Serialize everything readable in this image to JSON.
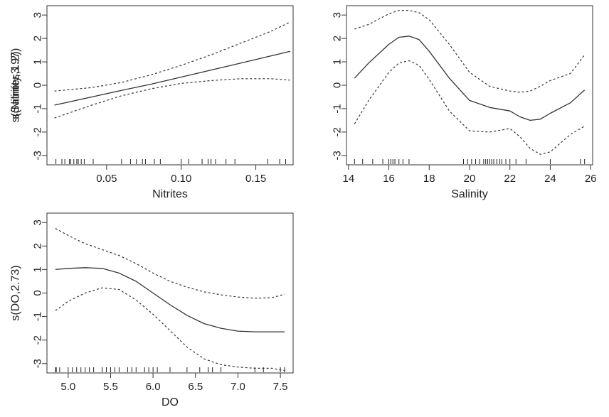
{
  "chart_data": [
    {
      "type": "line",
      "xlabel": "Nitrites",
      "ylabel": "s(Nitrites,1.2)",
      "xlim": [
        0.01,
        0.175
      ],
      "ylim": [
        -3.4,
        3.4
      ],
      "xticks": [
        0.05,
        0.1,
        0.15
      ],
      "xtick_labels": [
        "0.05",
        "0.10",
        "0.15"
      ],
      "yticks": [
        -3,
        -2,
        -1,
        0,
        1,
        2,
        3
      ],
      "ytick_labels": [
        "-3",
        "-2",
        "-1",
        "0",
        "1",
        "2",
        "3"
      ],
      "grid": false,
      "series": [
        {
          "role": "fit",
          "style": "solid",
          "x": [
            0.015,
            0.04,
            0.06,
            0.08,
            0.1,
            0.12,
            0.14,
            0.16,
            0.173
          ],
          "y": [
            -0.85,
            -0.5,
            -0.22,
            0.05,
            0.35,
            0.65,
            0.95,
            1.25,
            1.45
          ]
        },
        {
          "role": "upper",
          "style": "dashed",
          "x": [
            0.015,
            0.04,
            0.06,
            0.08,
            0.1,
            0.12,
            0.14,
            0.16,
            0.173
          ],
          "y": [
            -0.25,
            -0.1,
            0.12,
            0.45,
            0.85,
            1.3,
            1.8,
            2.3,
            2.7
          ]
        },
        {
          "role": "lower",
          "style": "dashed",
          "x": [
            0.015,
            0.04,
            0.06,
            0.08,
            0.1,
            0.12,
            0.14,
            0.16,
            0.173
          ],
          "y": [
            -1.4,
            -0.85,
            -0.45,
            -0.15,
            0.08,
            0.2,
            0.28,
            0.28,
            0.22
          ]
        }
      ],
      "rug": [
        0.016,
        0.02,
        0.022,
        0.025,
        0.026,
        0.028,
        0.03,
        0.031,
        0.033,
        0.035,
        0.041,
        0.06,
        0.066,
        0.07,
        0.074,
        0.076,
        0.082,
        0.086,
        0.1,
        0.105,
        0.114,
        0.118,
        0.12,
        0.123,
        0.13,
        0.136,
        0.158,
        0.166,
        0.17
      ]
    },
    {
      "type": "line",
      "xlabel": "Salinity",
      "ylabel": "s(Salinity,3.97)",
      "xlim": [
        13.9,
        26.1
      ],
      "ylim": [
        -3.4,
        3.4
      ],
      "xticks": [
        14,
        16,
        18,
        20,
        22,
        24,
        26
      ],
      "xtick_labels": [
        "14",
        "16",
        "18",
        "20",
        "22",
        "24",
        "26"
      ],
      "yticks": [
        -3,
        -2,
        -1,
        0,
        1,
        2,
        3
      ],
      "ytick_labels": [
        "-3",
        "-2",
        "-1",
        "0",
        "1",
        "2",
        "3"
      ],
      "grid": false,
      "series": [
        {
          "role": "fit",
          "style": "solid",
          "x": [
            14.3,
            15.0,
            16.0,
            16.5,
            17.0,
            17.5,
            18.0,
            19.0,
            20.0,
            21.0,
            22.0,
            22.5,
            23.0,
            23.5,
            24.0,
            25.0,
            25.7
          ],
          "y": [
            0.3,
            0.95,
            1.75,
            2.05,
            2.1,
            1.95,
            1.45,
            0.3,
            -0.65,
            -0.95,
            -1.1,
            -1.35,
            -1.5,
            -1.45,
            -1.2,
            -0.75,
            -0.2
          ]
        },
        {
          "role": "upper",
          "style": "dashed",
          "x": [
            14.3,
            15.0,
            16.0,
            16.5,
            17.0,
            17.5,
            18.0,
            19.0,
            20.0,
            21.0,
            22.0,
            22.5,
            23.0,
            23.5,
            24.0,
            25.0,
            25.7
          ],
          "y": [
            2.4,
            2.6,
            3.05,
            3.2,
            3.2,
            3.1,
            2.8,
            1.75,
            0.55,
            -0.05,
            -0.25,
            -0.3,
            -0.25,
            -0.05,
            0.2,
            0.5,
            1.3
          ]
        },
        {
          "role": "lower",
          "style": "dashed",
          "x": [
            14.3,
            15.0,
            16.0,
            16.5,
            17.0,
            17.5,
            18.0,
            19.0,
            20.0,
            21.0,
            22.0,
            22.5,
            23.0,
            23.5,
            24.0,
            25.0,
            25.7
          ],
          "y": [
            -1.65,
            -0.65,
            0.55,
            0.95,
            1.05,
            0.85,
            0.25,
            -1.1,
            -1.95,
            -2.0,
            -1.85,
            -2.2,
            -2.7,
            -2.95,
            -2.85,
            -2.1,
            -1.75
          ]
        }
      ],
      "rug": [
        14.3,
        14.7,
        15.2,
        15.7,
        16.0,
        16.1,
        16.2,
        16.3,
        16.5,
        16.7,
        17.0,
        19.7,
        19.9,
        20.1,
        20.3,
        20.5,
        20.7,
        20.8,
        20.9,
        21.0,
        21.1,
        21.2,
        21.35,
        21.5,
        21.6,
        21.8,
        22.0,
        22.3,
        22.8,
        24.0,
        25.5,
        25.7
      ]
    },
    {
      "type": "line",
      "xlabel": "DO",
      "ylabel": "s(DO,2.73)",
      "xlim": [
        4.75,
        7.65
      ],
      "ylim": [
        -3.4,
        3.4
      ],
      "xticks": [
        5.0,
        5.5,
        6.0,
        6.5,
        7.0,
        7.5
      ],
      "xtick_labels": [
        "5.0",
        "5.5",
        "6.0",
        "6.5",
        "7.0",
        "7.5"
      ],
      "yticks": [
        -3,
        -2,
        -1,
        0,
        1,
        2,
        3
      ],
      "ytick_labels": [
        "-3",
        "-2",
        "-1",
        "0",
        "1",
        "2",
        "3"
      ],
      "grid": false,
      "series": [
        {
          "role": "fit",
          "style": "solid",
          "x": [
            4.85,
            5.0,
            5.2,
            5.4,
            5.6,
            5.8,
            6.0,
            6.2,
            6.4,
            6.6,
            6.8,
            7.0,
            7.2,
            7.4,
            7.55
          ],
          "y": [
            1.0,
            1.05,
            1.08,
            1.05,
            0.85,
            0.5,
            0.0,
            -0.5,
            -0.95,
            -1.3,
            -1.5,
            -1.62,
            -1.65,
            -1.65,
            -1.65
          ]
        },
        {
          "role": "upper",
          "style": "dashed",
          "x": [
            4.85,
            5.0,
            5.2,
            5.4,
            5.6,
            5.8,
            6.0,
            6.2,
            6.4,
            6.6,
            6.8,
            7.0,
            7.2,
            7.4,
            7.55
          ],
          "y": [
            2.75,
            2.45,
            2.1,
            1.85,
            1.6,
            1.25,
            0.85,
            0.5,
            0.25,
            0.05,
            -0.08,
            -0.17,
            -0.22,
            -0.2,
            -0.05
          ]
        },
        {
          "role": "lower",
          "style": "dashed",
          "x": [
            4.85,
            5.0,
            5.2,
            5.4,
            5.6,
            5.8,
            6.0,
            6.2,
            6.4,
            6.6,
            6.8,
            7.0,
            7.2,
            7.4,
            7.55
          ],
          "y": [
            -0.75,
            -0.35,
            0.0,
            0.22,
            0.15,
            -0.3,
            -0.9,
            -1.6,
            -2.3,
            -2.8,
            -3.05,
            -3.15,
            -3.2,
            -3.2,
            -3.3
          ]
        }
      ],
      "rug": [
        4.85,
        4.86,
        4.9,
        5.0,
        5.05,
        5.1,
        5.15,
        5.2,
        5.25,
        5.3,
        5.4,
        5.45,
        5.5,
        5.55,
        5.6,
        5.7,
        5.75,
        5.8,
        5.9,
        5.95,
        6.0,
        6.05,
        6.2,
        6.4,
        6.55,
        6.65,
        6.7,
        6.8,
        7.2,
        7.3,
        7.5,
        7.55
      ]
    }
  ]
}
